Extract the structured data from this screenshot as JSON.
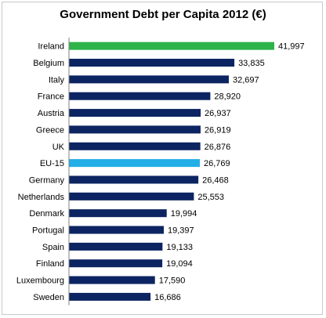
{
  "chart_data": {
    "type": "bar",
    "orientation": "horizontal",
    "title": "Government Debt per Capita  2012 (€)",
    "categories": [
      "Ireland",
      "Belgium",
      "Italy",
      "France",
      "Austria",
      "Greece",
      "UK",
      "EU-15",
      "Germany",
      "Netherlands",
      "Denmark",
      "Portugal",
      "Spain",
      "Finland",
      "Luxembourg",
      "Sweden"
    ],
    "values": [
      41997,
      33835,
      32697,
      28920,
      26937,
      26919,
      26876,
      26769,
      26468,
      25553,
      19994,
      19397,
      19133,
      19094,
      17590,
      16686
    ],
    "value_labels": [
      "41,997",
      "33,835",
      "32,697",
      "28,920",
      "26,937",
      "26,919",
      "26,876",
      "26,769",
      "26,468",
      "25,553",
      "19,994",
      "19,397",
      "19,133",
      "19,094",
      "17,590",
      "16,686"
    ],
    "xlim": [
      0,
      42000
    ],
    "grid": false,
    "legend": "none",
    "colors": {
      "default": "#0c2461",
      "highlight_ireland": "#2db34a",
      "highlight_eu15": "#22aee6",
      "axis": "#808080"
    }
  }
}
